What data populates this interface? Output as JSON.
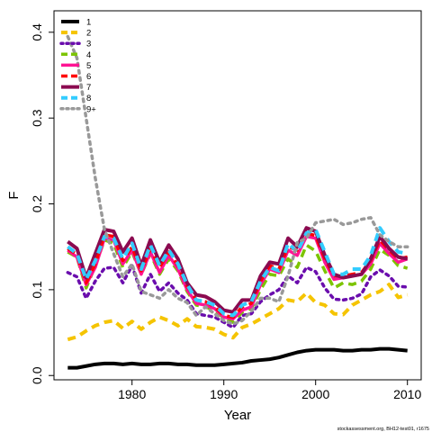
{
  "chart_data": {
    "type": "line",
    "xlabel": "Year",
    "ylabel": "F",
    "xlim": [
      1971.5,
      2011.5
    ],
    "ylim": [
      -0.005,
      0.425
    ],
    "xticks": [
      "1980",
      "1990",
      "2000",
      "2010"
    ],
    "yticks": [
      "0.0",
      "0.1",
      "0.2",
      "0.3",
      "0.4"
    ],
    "x": [
      1973,
      1974,
      1975,
      1976,
      1977,
      1978,
      1979,
      1980,
      1981,
      1982,
      1983,
      1984,
      1985,
      1986,
      1987,
      1988,
      1989,
      1990,
      1991,
      1992,
      1993,
      1994,
      1995,
      1996,
      1997,
      1998,
      1999,
      2000,
      2001,
      2002,
      2003,
      2004,
      2005,
      2006,
      2007,
      2008,
      2009,
      2010
    ],
    "legend_position": "top-left",
    "grid": false,
    "series": [
      {
        "name": "1",
        "color": "#000000",
        "dash": "solid",
        "width": 4,
        "values": [
          0.009,
          0.009,
          0.011,
          0.013,
          0.014,
          0.014,
          0.013,
          0.014,
          0.013,
          0.013,
          0.014,
          0.014,
          0.013,
          0.013,
          0.012,
          0.012,
          0.012,
          0.013,
          0.014,
          0.015,
          0.017,
          0.018,
          0.019,
          0.021,
          0.024,
          0.027,
          0.029,
          0.03,
          0.03,
          0.03,
          0.029,
          0.029,
          0.03,
          0.03,
          0.031,
          0.031,
          0.03,
          0.029
        ]
      },
      {
        "name": "2",
        "color": "#F5C400",
        "dash": "dash",
        "width": 4,
        "values": [
          0.042,
          0.045,
          0.052,
          0.058,
          0.062,
          0.064,
          0.055,
          0.063,
          0.054,
          0.062,
          0.068,
          0.064,
          0.058,
          0.066,
          0.057,
          0.056,
          0.054,
          0.048,
          0.044,
          0.056,
          0.06,
          0.066,
          0.072,
          0.078,
          0.088,
          0.086,
          0.096,
          0.085,
          0.082,
          0.072,
          0.071,
          0.082,
          0.088,
          0.094,
          0.098,
          0.106,
          0.091,
          0.094
        ]
      },
      {
        "name": "3",
        "color": "#6A0DAD",
        "dash": "dot",
        "width": 3.5,
        "values": [
          0.12,
          0.115,
          0.09,
          0.11,
          0.125,
          0.126,
          0.108,
          0.128,
          0.096,
          0.118,
          0.098,
          0.108,
          0.096,
          0.088,
          0.072,
          0.07,
          0.068,
          0.062,
          0.056,
          0.07,
          0.072,
          0.086,
          0.094,
          0.1,
          0.116,
          0.108,
          0.126,
          0.121,
          0.102,
          0.089,
          0.088,
          0.09,
          0.095,
          0.115,
          0.123,
          0.116,
          0.104,
          0.103
        ]
      },
      {
        "name": "4",
        "color": "#7CC400",
        "dash": "dash",
        "width": 3.5,
        "values": [
          0.144,
          0.138,
          0.102,
          0.128,
          0.158,
          0.154,
          0.126,
          0.144,
          0.118,
          0.142,
          0.118,
          0.136,
          0.122,
          0.098,
          0.082,
          0.08,
          0.076,
          0.067,
          0.062,
          0.074,
          0.078,
          0.1,
          0.118,
          0.116,
          0.136,
          0.126,
          0.152,
          0.145,
          0.122,
          0.102,
          0.108,
          0.106,
          0.11,
          0.124,
          0.147,
          0.14,
          0.128,
          0.125
        ]
      },
      {
        "name": "5",
        "color": "#FF1493",
        "dash": "solid",
        "width": 3.5,
        "values": [
          0.146,
          0.138,
          0.106,
          0.126,
          0.16,
          0.158,
          0.13,
          0.146,
          0.118,
          0.144,
          0.12,
          0.14,
          0.124,
          0.1,
          0.084,
          0.082,
          0.078,
          0.068,
          0.066,
          0.076,
          0.08,
          0.106,
          0.124,
          0.12,
          0.146,
          0.14,
          0.162,
          0.16,
          0.132,
          0.112,
          0.114,
          0.116,
          0.118,
          0.13,
          0.154,
          0.142,
          0.132,
          0.136
        ]
      },
      {
        "name": "6",
        "color": "#FF0000",
        "dash": "dash",
        "width": 3.5,
        "values": [
          0.148,
          0.141,
          0.108,
          0.13,
          0.164,
          0.162,
          0.134,
          0.15,
          0.122,
          0.148,
          0.126,
          0.144,
          0.128,
          0.104,
          0.088,
          0.086,
          0.08,
          0.07,
          0.068,
          0.08,
          0.084,
          0.11,
          0.128,
          0.124,
          0.15,
          0.146,
          0.166,
          0.163,
          0.136,
          0.116,
          0.116,
          0.118,
          0.12,
          0.134,
          0.158,
          0.146,
          0.136,
          0.138
        ]
      },
      {
        "name": "7",
        "color": "#8B0A50",
        "dash": "solid",
        "width": 4,
        "values": [
          0.156,
          0.148,
          0.114,
          0.142,
          0.17,
          0.168,
          0.144,
          0.16,
          0.128,
          0.158,
          0.132,
          0.152,
          0.136,
          0.108,
          0.094,
          0.092,
          0.086,
          0.076,
          0.074,
          0.088,
          0.088,
          0.116,
          0.132,
          0.13,
          0.16,
          0.15,
          0.172,
          0.168,
          0.14,
          0.118,
          0.114,
          0.116,
          0.118,
          0.136,
          0.162,
          0.148,
          0.138,
          0.136
        ]
      },
      {
        "name": "8",
        "color": "#33CCFF",
        "dash": "dash",
        "width": 4,
        "values": [
          0.15,
          0.142,
          0.112,
          0.134,
          0.162,
          0.16,
          0.136,
          0.154,
          0.124,
          0.152,
          0.128,
          0.146,
          0.13,
          0.106,
          0.088,
          0.086,
          0.082,
          0.072,
          0.07,
          0.082,
          0.086,
          0.11,
          0.126,
          0.122,
          0.154,
          0.144,
          0.166,
          0.17,
          0.144,
          0.118,
          0.118,
          0.124,
          0.124,
          0.14,
          0.172,
          0.156,
          0.144,
          0.142
        ]
      },
      {
        "name": "9+",
        "color": "#999999",
        "dash": "dot",
        "width": 3.5,
        "values": [
          0.395,
          0.37,
          0.3,
          0.23,
          0.17,
          0.142,
          0.115,
          0.13,
          0.098,
          0.094,
          0.09,
          0.1,
          0.09,
          0.085,
          0.07,
          0.08,
          0.072,
          0.064,
          0.06,
          0.064,
          0.075,
          0.09,
          0.09,
          0.086,
          0.116,
          0.155,
          0.16,
          0.178,
          0.18,
          0.182,
          0.176,
          0.178,
          0.182,
          0.184,
          0.164,
          0.156,
          0.15,
          0.15
        ]
      }
    ]
  },
  "footer": "stockassessment.org, BH12-test01, r1675"
}
